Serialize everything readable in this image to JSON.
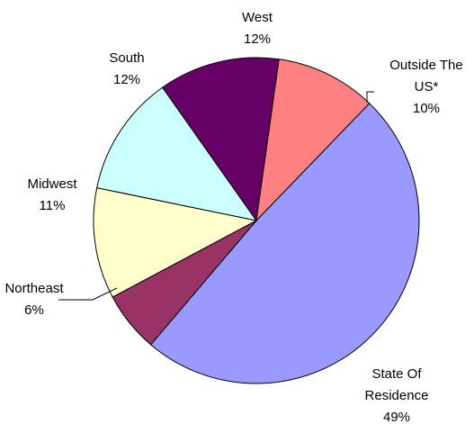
{
  "chart_data": {
    "type": "pie",
    "title": "",
    "slices": [
      {
        "name": "State Of Residence",
        "label_lines": [
          "State Of",
          "Residence"
        ],
        "pct_label": "49%",
        "value": 49,
        "color": "#9999ff"
      },
      {
        "name": "Northeast",
        "label_lines": [
          "Northeast"
        ],
        "pct_label": "6%",
        "value": 6,
        "color": "#993366"
      },
      {
        "name": "Midwest",
        "label_lines": [
          "Midwest"
        ],
        "pct_label": "11%",
        "value": 11,
        "color": "#ffffcc"
      },
      {
        "name": "South",
        "label_lines": [
          "South"
        ],
        "pct_label": "12%",
        "value": 12,
        "color": "#ccffff"
      },
      {
        "name": "West",
        "label_lines": [
          "West"
        ],
        "pct_label": "12%",
        "value": 12,
        "color": "#660066"
      },
      {
        "name": "Outside The US*",
        "label_lines": [
          "Outside The",
          "US*"
        ],
        "pct_label": "10%",
        "value": 10,
        "color": "#ff8080"
      }
    ],
    "legend": "none"
  }
}
